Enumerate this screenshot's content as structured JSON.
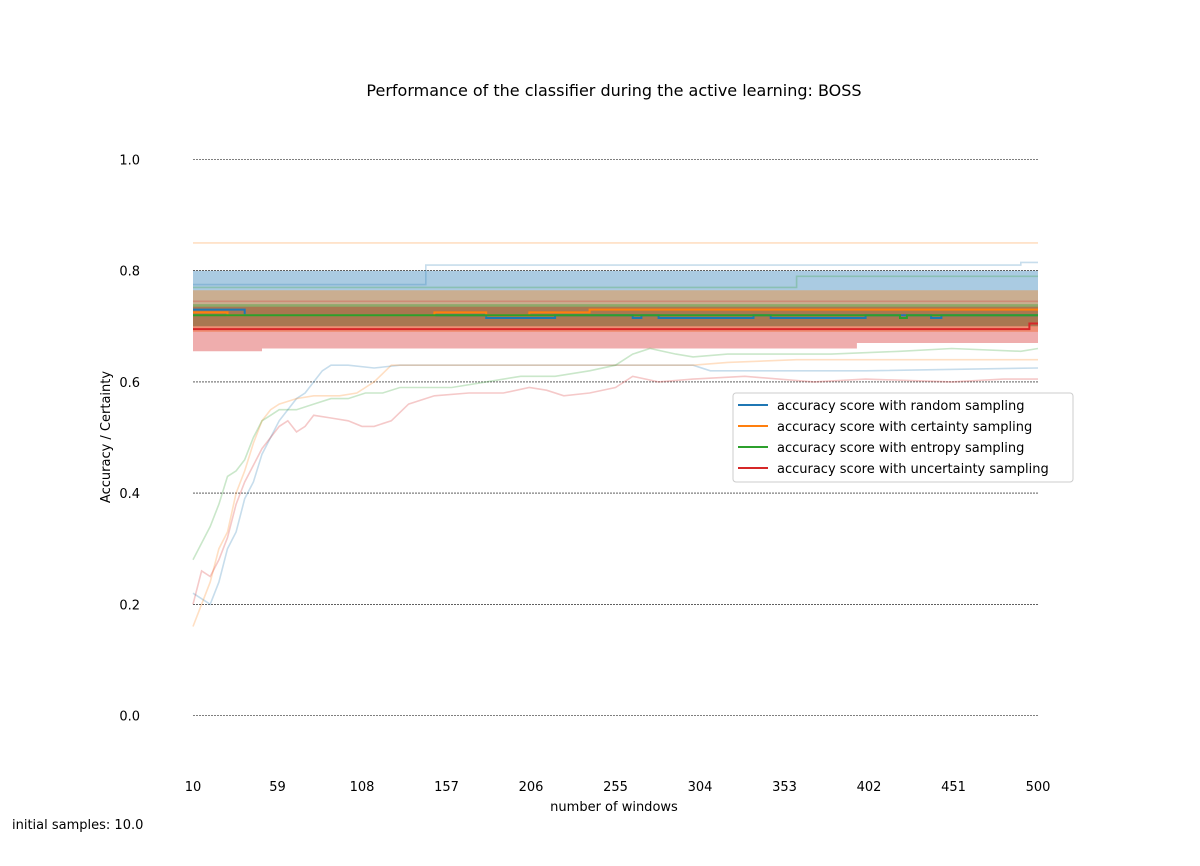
{
  "chart_data": {
    "type": "line",
    "title": "Performance of the classifier during the active learning: BOSS",
    "xlabel": "number of windows",
    "ylabel": "Accuracy / Certainty",
    "xlim": [
      10,
      500
    ],
    "ylim": [
      -0.1,
      1.1
    ],
    "xticks": [
      10,
      59,
      108,
      157,
      206,
      255,
      304,
      353,
      402,
      451,
      500
    ],
    "yticks": [
      0.0,
      0.2,
      0.4,
      0.6,
      0.8,
      1.0
    ],
    "ytick_labels": [
      "0.0",
      "0.2",
      "0.4",
      "0.6",
      "0.8",
      "1.0"
    ],
    "grid": "horizontal dashed",
    "legend_position": "center-right",
    "series": [
      {
        "name": "accuracy score with random sampling",
        "color": "#1f77b4",
        "accuracy": [
          [
            10,
            0.73
          ],
          [
            40,
            0.73
          ],
          [
            40,
            0.72
          ],
          [
            180,
            0.72
          ],
          [
            180,
            0.715
          ],
          [
            220,
            0.715
          ],
          [
            220,
            0.72
          ],
          [
            265,
            0.72
          ],
          [
            265,
            0.715
          ],
          [
            270,
            0.715
          ],
          [
            270,
            0.72
          ],
          [
            280,
            0.72
          ],
          [
            280,
            0.715
          ],
          [
            335,
            0.715
          ],
          [
            335,
            0.72
          ],
          [
            345,
            0.72
          ],
          [
            345,
            0.715
          ],
          [
            400,
            0.715
          ],
          [
            400,
            0.72
          ],
          [
            438,
            0.72
          ],
          [
            438,
            0.715
          ],
          [
            444,
            0.715
          ],
          [
            444,
            0.72
          ],
          [
            500,
            0.72
          ]
        ],
        "band_upper": [
          [
            10,
            0.8
          ],
          [
            500,
            0.8
          ]
        ],
        "band_lower": [
          [
            10,
            0.7
          ],
          [
            500,
            0.7
          ]
        ],
        "certainty_high": [
          [
            10,
            0.775
          ],
          [
            145,
            0.775
          ],
          [
            145,
            0.81
          ],
          [
            400,
            0.81
          ],
          [
            400,
            0.81
          ],
          [
            490,
            0.81
          ],
          [
            490,
            0.815
          ],
          [
            500,
            0.815
          ]
        ],
        "certainty_low": [
          [
            10,
            0.22
          ],
          [
            20,
            0.2
          ],
          [
            25,
            0.24
          ],
          [
            30,
            0.3
          ],
          [
            35,
            0.33
          ],
          [
            40,
            0.39
          ],
          [
            45,
            0.42
          ],
          [
            50,
            0.47
          ],
          [
            55,
            0.5
          ],
          [
            60,
            0.53
          ],
          [
            65,
            0.55
          ],
          [
            70,
            0.57
          ],
          [
            75,
            0.58
          ],
          [
            80,
            0.6
          ],
          [
            85,
            0.62
          ],
          [
            90,
            0.63
          ],
          [
            100,
            0.63
          ],
          [
            115,
            0.625
          ],
          [
            130,
            0.63
          ],
          [
            150,
            0.63
          ],
          [
            200,
            0.63
          ],
          [
            250,
            0.63
          ],
          [
            300,
            0.63
          ],
          [
            310,
            0.62
          ],
          [
            400,
            0.62
          ],
          [
            500,
            0.625
          ]
        ]
      },
      {
        "name": "accuracy score with certainty sampling",
        "color": "#ff7f0e",
        "accuracy": [
          [
            10,
            0.725
          ],
          [
            30,
            0.725
          ],
          [
            30,
            0.72
          ],
          [
            150,
            0.72
          ],
          [
            150,
            0.725
          ],
          [
            180,
            0.725
          ],
          [
            180,
            0.72
          ],
          [
            205,
            0.72
          ],
          [
            205,
            0.725
          ],
          [
            240,
            0.725
          ],
          [
            240,
            0.73
          ],
          [
            500,
            0.73
          ]
        ],
        "band_upper": [
          [
            10,
            0.765
          ],
          [
            500,
            0.765
          ]
        ],
        "band_lower": [
          [
            10,
            0.69
          ],
          [
            500,
            0.69
          ]
        ],
        "certainty_high": [
          [
            10,
            0.85
          ],
          [
            500,
            0.85
          ]
        ],
        "certainty_low": [
          [
            10,
            0.16
          ],
          [
            15,
            0.2
          ],
          [
            20,
            0.24
          ],
          [
            25,
            0.3
          ],
          [
            30,
            0.33
          ],
          [
            35,
            0.4
          ],
          [
            40,
            0.44
          ],
          [
            45,
            0.49
          ],
          [
            50,
            0.53
          ],
          [
            55,
            0.55
          ],
          [
            60,
            0.56
          ],
          [
            70,
            0.57
          ],
          [
            80,
            0.575
          ],
          [
            95,
            0.575
          ],
          [
            105,
            0.58
          ],
          [
            115,
            0.6
          ],
          [
            125,
            0.63
          ],
          [
            200,
            0.63
          ],
          [
            260,
            0.63
          ],
          [
            300,
            0.63
          ],
          [
            320,
            0.635
          ],
          [
            360,
            0.64
          ],
          [
            450,
            0.64
          ],
          [
            500,
            0.64
          ]
        ]
      },
      {
        "name": "accuracy score with entropy sampling",
        "color": "#2ca02c",
        "accuracy": [
          [
            10,
            0.72
          ],
          [
            420,
            0.72
          ],
          [
            420,
            0.715
          ],
          [
            424,
            0.715
          ],
          [
            424,
            0.72
          ],
          [
            500,
            0.72
          ]
        ],
        "band_upper": [
          [
            10,
            0.74
          ],
          [
            500,
            0.74
          ]
        ],
        "band_lower": [
          [
            10,
            0.7
          ],
          [
            500,
            0.7
          ]
        ],
        "certainty_high": [
          [
            10,
            0.77
          ],
          [
            360,
            0.77
          ],
          [
            360,
            0.79
          ],
          [
            500,
            0.79
          ]
        ],
        "certainty_low": [
          [
            10,
            0.28
          ],
          [
            15,
            0.31
          ],
          [
            20,
            0.34
          ],
          [
            25,
            0.38
          ],
          [
            30,
            0.43
          ],
          [
            35,
            0.44
          ],
          [
            40,
            0.46
          ],
          [
            45,
            0.5
          ],
          [
            50,
            0.53
          ],
          [
            55,
            0.54
          ],
          [
            60,
            0.55
          ],
          [
            70,
            0.55
          ],
          [
            80,
            0.56
          ],
          [
            90,
            0.57
          ],
          [
            100,
            0.57
          ],
          [
            110,
            0.58
          ],
          [
            120,
            0.58
          ],
          [
            130,
            0.59
          ],
          [
            145,
            0.59
          ],
          [
            160,
            0.59
          ],
          [
            180,
            0.6
          ],
          [
            200,
            0.61
          ],
          [
            220,
            0.61
          ],
          [
            240,
            0.62
          ],
          [
            255,
            0.63
          ],
          [
            265,
            0.65
          ],
          [
            275,
            0.66
          ],
          [
            290,
            0.65
          ],
          [
            300,
            0.645
          ],
          [
            320,
            0.65
          ],
          [
            350,
            0.65
          ],
          [
            380,
            0.65
          ],
          [
            420,
            0.655
          ],
          [
            450,
            0.66
          ],
          [
            490,
            0.655
          ],
          [
            500,
            0.66
          ]
        ]
      },
      {
        "name": "accuracy score with uncertainty sampling",
        "color": "#d62728",
        "accuracy": [
          [
            10,
            0.695
          ],
          [
            495,
            0.695
          ],
          [
            495,
            0.705
          ],
          [
            500,
            0.705
          ]
        ],
        "band_upper": [
          [
            10,
            0.735
          ],
          [
            500,
            0.735
          ]
        ],
        "band_lower": [
          [
            10,
            0.655
          ],
          [
            50,
            0.655
          ],
          [
            50,
            0.66
          ],
          [
            395,
            0.66
          ],
          [
            395,
            0.67
          ],
          [
            500,
            0.67
          ]
        ],
        "certainty_high": [
          [
            10,
            0.745
          ],
          [
            135,
            0.745
          ],
          [
            500,
            0.745
          ]
        ],
        "certainty_low": [
          [
            10,
            0.2
          ],
          [
            15,
            0.26
          ],
          [
            20,
            0.25
          ],
          [
            25,
            0.28
          ],
          [
            30,
            0.32
          ],
          [
            35,
            0.38
          ],
          [
            40,
            0.42
          ],
          [
            45,
            0.45
          ],
          [
            50,
            0.48
          ],
          [
            55,
            0.5
          ],
          [
            60,
            0.52
          ],
          [
            65,
            0.53
          ],
          [
            70,
            0.51
          ],
          [
            75,
            0.52
          ],
          [
            80,
            0.54
          ],
          [
            90,
            0.535
          ],
          [
            100,
            0.53
          ],
          [
            108,
            0.52
          ],
          [
            115,
            0.52
          ],
          [
            125,
            0.53
          ],
          [
            135,
            0.56
          ],
          [
            150,
            0.575
          ],
          [
            170,
            0.58
          ],
          [
            190,
            0.58
          ],
          [
            205,
            0.59
          ],
          [
            215,
            0.585
          ],
          [
            225,
            0.575
          ],
          [
            240,
            0.58
          ],
          [
            255,
            0.59
          ],
          [
            265,
            0.61
          ],
          [
            280,
            0.6
          ],
          [
            300,
            0.605
          ],
          [
            330,
            0.61
          ],
          [
            370,
            0.6
          ],
          [
            400,
            0.605
          ],
          [
            450,
            0.6
          ],
          [
            480,
            0.605
          ],
          [
            500,
            0.605
          ]
        ]
      }
    ]
  },
  "footnote": "initial samples: 10.0"
}
